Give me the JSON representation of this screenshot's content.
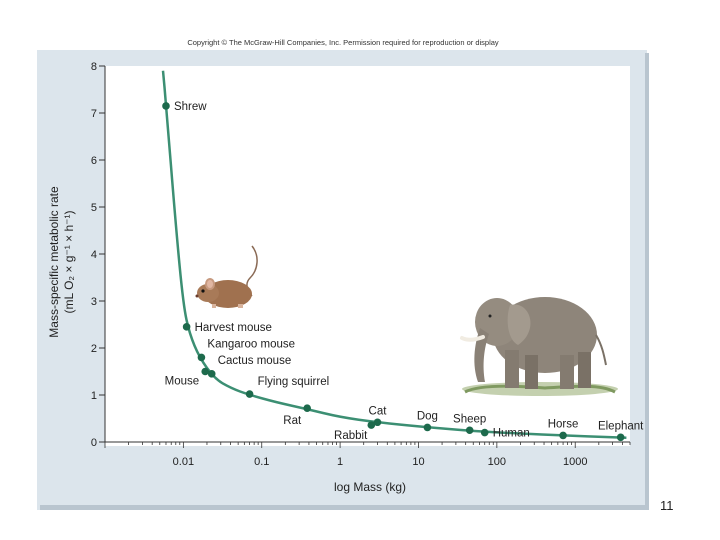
{
  "copyright": "Copyright © The McGraw-Hill Companies, Inc. Permission required for reproduction or display",
  "page_number": "11",
  "colors": {
    "panel": "#dce5ec",
    "plot": "#ffffff",
    "curve": "#3c8f73",
    "point": "#1d6a4c",
    "text": "#222222",
    "axis": "#333333"
  },
  "chart_data": {
    "type": "scatter",
    "xscale": "log",
    "xlabel": "log Mass (kg)",
    "ylabel_line1": "Mass-specific metabolic rate",
    "ylabel_line2": "(mL O₂ × g⁻¹ × h⁻¹)",
    "xlim": [
      0.001,
      5000
    ],
    "ylim": [
      0,
      8
    ],
    "x_ticks": [
      0.01,
      0.1,
      1,
      10,
      100,
      1000
    ],
    "x_tick_labels": [
      "0.01",
      "0.1",
      "1",
      "10",
      "100",
      "1000"
    ],
    "y_ticks": [
      0,
      1,
      2,
      3,
      4,
      5,
      6,
      7,
      8
    ],
    "y_tick_labels": [
      "0",
      "1",
      "2",
      "3",
      "4",
      "5",
      "6",
      "7",
      "8"
    ],
    "curve_points": [
      {
        "x": 0.0055,
        "y": 7.9
      },
      {
        "x": 0.006,
        "y": 7.2
      },
      {
        "x": 0.008,
        "y": 4.6
      },
      {
        "x": 0.01,
        "y": 2.9
      },
      {
        "x": 0.012,
        "y": 2.3
      },
      {
        "x": 0.016,
        "y": 1.8
      },
      {
        "x": 0.025,
        "y": 1.35
      },
      {
        "x": 0.04,
        "y": 1.15
      },
      {
        "x": 0.07,
        "y": 1.0
      },
      {
        "x": 0.15,
        "y": 0.85
      },
      {
        "x": 0.38,
        "y": 0.7
      },
      {
        "x": 1,
        "y": 0.53
      },
      {
        "x": 3,
        "y": 0.42
      },
      {
        "x": 10,
        "y": 0.33
      },
      {
        "x": 50,
        "y": 0.23
      },
      {
        "x": 200,
        "y": 0.18
      },
      {
        "x": 700,
        "y": 0.14
      },
      {
        "x": 3000,
        "y": 0.1
      },
      {
        "x": 4500,
        "y": 0.09
      }
    ],
    "points": [
      {
        "name": "Shrew",
        "x": 0.006,
        "y": 7.15,
        "label_pos": "right"
      },
      {
        "name": "Harvest mouse",
        "x": 0.011,
        "y": 2.45,
        "label_pos": "right"
      },
      {
        "name": "Kangaroo mouse",
        "x": 0.017,
        "y": 1.8,
        "label_pos": "above-right"
      },
      {
        "name": "Mouse",
        "x": 0.019,
        "y": 1.5,
        "label_pos": "below-left"
      },
      {
        "name": "Cactus mouse",
        "x": 0.023,
        "y": 1.45,
        "label_pos": "above-right"
      },
      {
        "name": "Flying squirrel",
        "x": 0.07,
        "y": 1.02,
        "label_pos": "above-right"
      },
      {
        "name": "Rat",
        "x": 0.38,
        "y": 0.72,
        "label_pos": "below-left"
      },
      {
        "name": "Rabbit",
        "x": 2.5,
        "y": 0.36,
        "label_pos": "below-left"
      },
      {
        "name": "Cat",
        "x": 3,
        "y": 0.42,
        "label_pos": "above"
      },
      {
        "name": "Dog",
        "x": 13,
        "y": 0.31,
        "label_pos": "above"
      },
      {
        "name": "Sheep",
        "x": 45,
        "y": 0.25,
        "label_pos": "above"
      },
      {
        "name": "Human",
        "x": 70,
        "y": 0.2,
        "label_pos": "right"
      },
      {
        "name": "Horse",
        "x": 700,
        "y": 0.14,
        "label_pos": "above"
      },
      {
        "name": "Elephant",
        "x": 3800,
        "y": 0.1,
        "label_pos": "above"
      }
    ]
  }
}
